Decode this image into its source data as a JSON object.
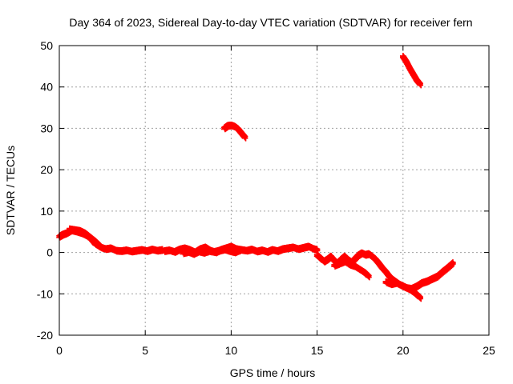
{
  "chart_data": {
    "type": "scatter",
    "title": "Day 364 of 2023, Sidereal Day-to-day VTEC variation (SDTVAR) for receiver fern",
    "xlabel": "GPS time / hours",
    "ylabel": "SDTVAR / TECUs",
    "xlim": [
      0,
      25
    ],
    "ylim": [
      -20,
      50
    ],
    "xticks": [
      0,
      5,
      10,
      15,
      20,
      25
    ],
    "yticks": [
      -20,
      -10,
      0,
      10,
      20,
      30,
      40,
      50
    ],
    "grid": true,
    "marker": "plus",
    "series": [
      {
        "name": "SDTVAR",
        "color": "#ff0000",
        "segments": [
          {
            "x": [
              0.0,
              0.2,
              0.4,
              0.7,
              1.0,
              1.3,
              1.6,
              1.9,
              2.1,
              2.4,
              2.7,
              3.0,
              3.3,
              3.6,
              3.9,
              4.2,
              4.5,
              4.8,
              5.1,
              5.4,
              5.7,
              6.0
            ],
            "y": [
              4.0,
              4.5,
              4.8,
              5.5,
              5.2,
              4.8,
              4.2,
              3.2,
              2.2,
              1.4,
              1.0,
              1.2,
              0.6,
              0.5,
              0.7,
              0.4,
              0.6,
              0.8,
              0.5,
              0.9,
              0.6,
              0.8
            ]
          },
          {
            "x": [
              0.6,
              0.9,
              1.2,
              1.5,
              1.8,
              2.1,
              2.4
            ],
            "y": [
              5.8,
              5.6,
              5.4,
              4.8,
              3.8,
              2.8,
              1.6
            ]
          },
          {
            "x": [
              6.1,
              6.4,
              6.7,
              7.0,
              7.3,
              7.6,
              7.9,
              8.2,
              8.5,
              8.8,
              9.1,
              9.4,
              9.7,
              10.0,
              10.3,
              10.6,
              10.9,
              11.2,
              11.5,
              11.8,
              12.1,
              12.4,
              12.7,
              13.0,
              13.3,
              13.6,
              13.9,
              14.2,
              14.5,
              14.8,
              15.0
            ],
            "y": [
              0.5,
              0.7,
              0.3,
              0.9,
              1.2,
              0.8,
              0.2,
              1.0,
              1.4,
              0.6,
              0.2,
              0.8,
              1.2,
              1.6,
              1.0,
              0.8,
              0.6,
              0.9,
              0.4,
              0.7,
              0.3,
              0.8,
              0.5,
              1.0,
              1.2,
              1.4,
              1.0,
              1.3,
              1.6,
              1.0,
              0.8
            ]
          },
          {
            "x": [
              7.2,
              7.5,
              7.8,
              8.1,
              8.4,
              8.7,
              9.0,
              9.3,
              9.6,
              9.9,
              10.2,
              10.5
            ],
            "y": [
              0.0,
              0.3,
              -0.2,
              0.4,
              0.1,
              0.5,
              0.3,
              0.6,
              0.9,
              0.5,
              0.2,
              0.7
            ]
          },
          {
            "x": [
              15.0,
              15.2,
              15.4,
              15.6,
              15.8,
              16.0,
              16.2,
              16.4,
              16.6,
              16.8,
              17.0,
              17.2,
              17.4,
              17.6,
              17.8,
              18.0,
              18.2,
              18.4,
              18.6,
              18.8,
              19.0,
              19.2,
              19.4,
              19.6,
              19.8,
              20.0,
              20.2,
              20.4,
              20.6,
              20.8,
              21.0
            ],
            "y": [
              -0.5,
              -1.2,
              -2.0,
              -1.5,
              -0.8,
              -1.8,
              -2.5,
              -1.5,
              -0.8,
              -1.6,
              -2.2,
              -1.4,
              -0.5,
              0.0,
              -0.4,
              -0.2,
              -0.8,
              -1.5,
              -2.5,
              -3.6,
              -4.5,
              -5.6,
              -6.4,
              -7.0,
              -7.6,
              -8.0,
              -8.4,
              -8.8,
              -9.4,
              -10.0,
              -10.8
            ]
          },
          {
            "x": [
              16.0,
              16.3,
              16.6,
              16.9,
              17.2,
              17.5,
              17.8,
              18.0
            ],
            "y": [
              -3.0,
              -2.5,
              -2.0,
              -2.8,
              -3.2,
              -4.0,
              -4.8,
              -5.6
            ]
          },
          {
            "x": [
              19.0,
              19.3,
              19.6,
              19.9,
              20.2,
              20.5,
              20.8,
              21.1,
              21.4,
              21.7,
              22.0,
              22.3,
              22.6,
              22.9
            ],
            "y": [
              -7.0,
              -7.5,
              -7.2,
              -7.8,
              -8.4,
              -8.6,
              -8.0,
              -7.2,
              -6.8,
              -6.2,
              -5.6,
              -4.5,
              -3.5,
              -2.4
            ]
          },
          {
            "x": [
              9.6,
              9.8,
              10.0,
              10.2,
              10.4,
              10.6,
              10.8
            ],
            "y": [
              30.2,
              30.8,
              30.9,
              30.6,
              30.0,
              29.0,
              28.0
            ]
          },
          {
            "x": [
              20.0,
              20.2,
              20.4,
              20.6,
              20.8,
              21.0
            ],
            "y": [
              47.5,
              46.2,
              44.6,
              43.2,
              41.8,
              40.8
            ]
          }
        ]
      }
    ]
  }
}
